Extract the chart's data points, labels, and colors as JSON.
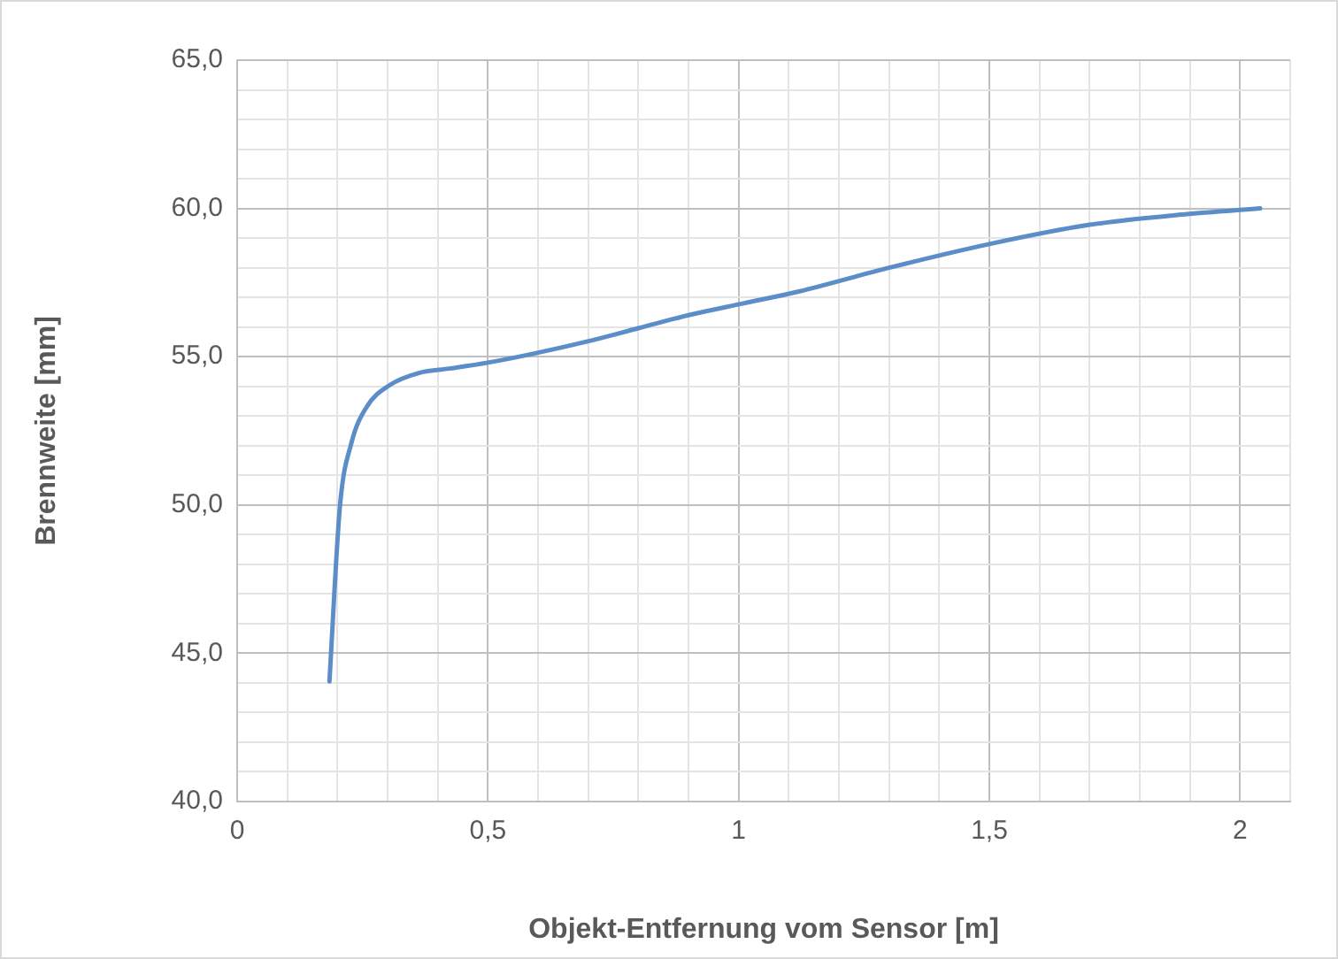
{
  "chart_data": {
    "type": "line",
    "xlabel": "Objekt-Entfernung vom Sensor [m]",
    "ylabel": "Brennweite [mm]",
    "x": [
      0.184,
      0.205,
      0.228,
      0.258,
      0.305,
      0.364,
      0.423,
      0.5,
      0.59,
      0.695,
      0.8,
      0.9,
      1.01,
      1.12,
      1.3,
      1.5,
      1.7,
      1.89,
      2.04
    ],
    "series": [
      {
        "color": "#5b8ec9",
        "values": [
          44.05,
          49.96,
          52.1,
          53.3,
          54.05,
          54.46,
          54.6,
          54.8,
          55.1,
          55.5,
          55.96,
          56.4,
          56.8,
          57.2,
          58.0,
          58.8,
          59.45,
          59.8,
          60.0
        ]
      }
    ],
    "xlim": [
      0,
      2.1
    ],
    "xticks": [
      {
        "value": 0,
        "label": "0"
      },
      {
        "value": 0.1,
        "label": null
      },
      {
        "value": 0.2,
        "label": null
      },
      {
        "value": 0.3,
        "label": null
      },
      {
        "value": 0.4,
        "label": null
      },
      {
        "value": 0.5,
        "label": "0,5"
      },
      {
        "value": 0.6,
        "label": null
      },
      {
        "value": 0.7,
        "label": null
      },
      {
        "value": 0.8,
        "label": null
      },
      {
        "value": 0.9,
        "label": null
      },
      {
        "value": 1,
        "label": "1"
      },
      {
        "value": 1.1,
        "label": null
      },
      {
        "value": 1.2,
        "label": null
      },
      {
        "value": 1.3,
        "label": null
      },
      {
        "value": 1.4,
        "label": null
      },
      {
        "value": 1.5,
        "label": "1,5"
      },
      {
        "value": 1.6,
        "label": null
      },
      {
        "value": 1.7,
        "label": null
      },
      {
        "value": 1.8,
        "label": null
      },
      {
        "value": 1.9,
        "label": null
      },
      {
        "value": 2,
        "label": "2"
      },
      {
        "value": 2.1,
        "label": null
      }
    ],
    "ylim": [
      40,
      65
    ],
    "yticks": [
      {
        "value": 40,
        "label": "40,0"
      },
      {
        "value": 41,
        "label": null
      },
      {
        "value": 42,
        "label": null
      },
      {
        "value": 43,
        "label": null
      },
      {
        "value": 44,
        "label": null
      },
      {
        "value": 45,
        "label": "45,0"
      },
      {
        "value": 46,
        "label": null
      },
      {
        "value": 47,
        "label": null
      },
      {
        "value": 48,
        "label": null
      },
      {
        "value": 49,
        "label": null
      },
      {
        "value": 50,
        "label": "50,0"
      },
      {
        "value": 51,
        "label": null
      },
      {
        "value": 52,
        "label": null
      },
      {
        "value": 53,
        "label": null
      },
      {
        "value": 54,
        "label": null
      },
      {
        "value": 55,
        "label": "55,0"
      },
      {
        "value": 56,
        "label": null
      },
      {
        "value": 57,
        "label": null
      },
      {
        "value": 58,
        "label": null
      },
      {
        "value": 59,
        "label": null
      },
      {
        "value": 60,
        "label": "60,0"
      },
      {
        "value": 61,
        "label": null
      },
      {
        "value": 62,
        "label": null
      },
      {
        "value": 63,
        "label": null
      },
      {
        "value": 64,
        "label": null
      },
      {
        "value": 65,
        "label": "65,0"
      }
    ],
    "grid": true,
    "marker": "none",
    "line_style": "solid",
    "legend": false
  }
}
